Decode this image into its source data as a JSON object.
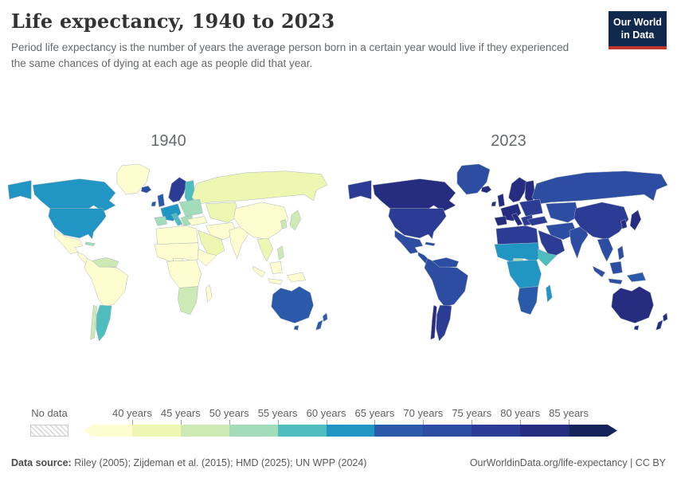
{
  "header": {
    "title": "Life expectancy, 1940 to 2023",
    "subtitle": "Period life expectancy is the number of years the average person born in a certain year would live if they experienced the same chances of dying at each age as people did that year."
  },
  "logo": {
    "line1": "Our World",
    "line2": "in Data",
    "bg_color": "#12294e",
    "accent_color": "#c0362c"
  },
  "legend": {
    "no_data_label": "No data",
    "tick_labels": [
      "40 years",
      "45 years",
      "50 years",
      "55 years",
      "60 years",
      "65 years",
      "70 years",
      "75 years",
      "80 years",
      "85 years"
    ]
  },
  "footer": {
    "source_label": "Data source:",
    "source_text": " Riley (2005); Zijdeman et al. (2015); HMD (2025); UN WPP (2024)",
    "right_text": "OurWorldinData.org/life-expectancy | CC BY"
  },
  "chart_data": {
    "type": "heatmap",
    "subtype": "choropleth world map pair",
    "title": "Life expectancy, 1940 to 2023",
    "unit": "years",
    "years": [
      "1940",
      "2023"
    ],
    "legend_position": "bottom",
    "bins": [
      {
        "range": "<40",
        "color": "#fdfdd0"
      },
      {
        "range": "40-45",
        "color": "#eef7b2"
      },
      {
        "range": "45-50",
        "color": "#cdeab5"
      },
      {
        "range": "50-55",
        "color": "#a3dcb9"
      },
      {
        "range": "55-60",
        "color": "#4fbcbe"
      },
      {
        "range": "60-65",
        "color": "#2196c5"
      },
      {
        "range": "65-70",
        "color": "#2a5aa9"
      },
      {
        "range": "70-75",
        "color": "#2d4da2"
      },
      {
        "range": "75-80",
        "color": "#2c3c95"
      },
      {
        "range": "80-85",
        "color": "#262d80"
      },
      {
        "range": "85+",
        "color": "#15235c"
      }
    ],
    "regions": [
      {
        "name": "greenland",
        "values": {
          "1940": "<40",
          "2023": "70-75"
        }
      },
      {
        "name": "alaska",
        "values": {
          "1940": "60-65",
          "2023": "75-80"
        }
      },
      {
        "name": "canada",
        "values": {
          "1940": "60-65",
          "2023": "80-85"
        }
      },
      {
        "name": "usa",
        "values": {
          "1940": "60-65",
          "2023": "75-80"
        }
      },
      {
        "name": "mexico",
        "values": {
          "1940": "<40",
          "2023": "70-75"
        }
      },
      {
        "name": "central-america",
        "values": {
          "1940": "<40",
          "2023": "70-75"
        }
      },
      {
        "name": "caribbean",
        "values": {
          "1940": "50-55",
          "2023": "70-75"
        }
      },
      {
        "name": "south-america-north",
        "values": {
          "1940": "<40",
          "2023": "70-75"
        }
      },
      {
        "name": "venezuela-guyanas",
        "values": {
          "1940": "45-50",
          "2023": "70-75"
        }
      },
      {
        "name": "argentina-uruguay",
        "values": {
          "1940": "55-60",
          "2023": "75-80"
        }
      },
      {
        "name": "chile",
        "values": {
          "1940": "45-50",
          "2023": "80-85"
        }
      },
      {
        "name": "iceland",
        "values": {
          "1940": "70-75",
          "2023": "80-85"
        }
      },
      {
        "name": "uk-ireland",
        "values": {
          "1940": "65-70",
          "2023": "80-85"
        }
      },
      {
        "name": "scandinavia",
        "values": {
          "1940": "75-80",
          "2023": "80-85"
        }
      },
      {
        "name": "finland-baltics",
        "values": {
          "1940": "55-60",
          "2023": "80-85"
        }
      },
      {
        "name": "russia",
        "values": {
          "1940": "40-45",
          "2023": "70-75"
        }
      },
      {
        "name": "eastern-europe",
        "values": {
          "1940": "50-55",
          "2023": "75-80"
        }
      },
      {
        "name": "western-europe",
        "values": {
          "1940": "60-65",
          "2023": "80-85"
        }
      },
      {
        "name": "iberia",
        "values": {
          "1940": "50-55",
          "2023": "80-85"
        }
      },
      {
        "name": "italy",
        "values": {
          "1940": "55-60",
          "2023": "80-85"
        }
      },
      {
        "name": "balkans",
        "values": {
          "1940": "50-55",
          "2023": "75-80"
        }
      },
      {
        "name": "central-asia",
        "values": {
          "1940": "40-45",
          "2023": "70-75"
        }
      },
      {
        "name": "turkey",
        "values": {
          "1940": "<40",
          "2023": "75-80"
        }
      },
      {
        "name": "iran-afghanistan",
        "values": {
          "1940": "<40",
          "2023": "70-75"
        }
      },
      {
        "name": "arabia",
        "values": {
          "1940": "40-45",
          "2023": "75-80"
        }
      },
      {
        "name": "north-africa",
        "values": {
          "1940": "<40",
          "2023": "75-80"
        }
      },
      {
        "name": "sahel-west-africa",
        "values": {
          "1940": "<40",
          "2023": "60-65"
        }
      },
      {
        "name": "nigeria",
        "values": {
          "1940": "<40",
          "2023": "50-55"
        }
      },
      {
        "name": "horn-of-africa",
        "values": {
          "1940": "<40",
          "2023": "55-60"
        }
      },
      {
        "name": "central-africa",
        "values": {
          "1940": "<40",
          "2023": "60-65"
        }
      },
      {
        "name": "southern-africa",
        "values": {
          "1940": "45-50",
          "2023": "65-70"
        }
      },
      {
        "name": "madagascar",
        "values": {
          "1940": "<40",
          "2023": "60-65"
        }
      },
      {
        "name": "india",
        "values": {
          "1940": "<40",
          "2023": "70-75"
        }
      },
      {
        "name": "china",
        "values": {
          "1940": "<40",
          "2023": "75-80"
        }
      },
      {
        "name": "southeast-asia",
        "values": {
          "1940": "40-45",
          "2023": "70-75"
        }
      },
      {
        "name": "korea",
        "values": {
          "1940": "45-50",
          "2023": "80-85"
        }
      },
      {
        "name": "japan",
        "values": {
          "1940": "45-50",
          "2023": "80-85"
        }
      },
      {
        "name": "philippines",
        "values": {
          "1940": "45-50",
          "2023": "70-75"
        }
      },
      {
        "name": "indonesia",
        "values": {
          "1940": "<40",
          "2023": "70-75"
        }
      },
      {
        "name": "papua-new-guinea",
        "values": {
          "1940": "<40",
          "2023": "65-70"
        }
      },
      {
        "name": "australia",
        "values": {
          "1940": "65-70",
          "2023": "80-85"
        }
      },
      {
        "name": "new-zealand",
        "values": {
          "1940": "65-70",
          "2023": "80-85"
        }
      }
    ]
  }
}
